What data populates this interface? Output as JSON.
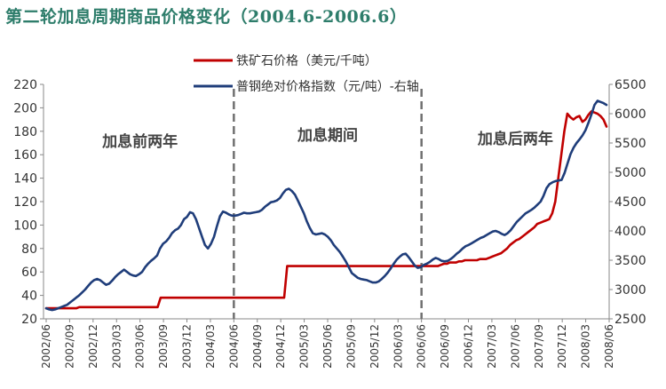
{
  "title": "第二轮加息周期商品价格变化（2004.6-2006.6）",
  "chart_data": {
    "type": "line",
    "title": "第二轮加息周期商品价格变化（2004.6-2006.6）",
    "left_axis": {
      "ylim": [
        20,
        220
      ],
      "ticks": [
        20,
        40,
        60,
        80,
        100,
        120,
        140,
        160,
        180,
        200,
        220
      ]
    },
    "right_axis": {
      "ylim": [
        2500,
        6500
      ],
      "ticks": [
        2500,
        3000,
        3500,
        4000,
        4500,
        5000,
        5500,
        6000,
        6500
      ]
    },
    "x_tick_labels": [
      "2002/06",
      "2002/09",
      "2002/12",
      "2003/03",
      "2003/06",
      "2003/09",
      "2003/12",
      "2004/03",
      "2004/06",
      "2004/09",
      "2004/12",
      "2005/03",
      "2005/06",
      "2005/09",
      "2005/12",
      "2006/03",
      "2006/06",
      "2006/09",
      "2006/12",
      "2007/03",
      "2007/06",
      "2007/09",
      "2007/12",
      "2008/03",
      "2008/06"
    ],
    "dividers": [
      "2004/06",
      "2006/06"
    ],
    "period_labels": [
      {
        "text": "加息前两年",
        "start": "2002/06",
        "end": "2004/06"
      },
      {
        "text": "加息期间",
        "start": "2004/06",
        "end": "2006/06"
      },
      {
        "text": "加息后两年",
        "start": "2006/06",
        "end": "2008/06"
      }
    ],
    "series": [
      {
        "name": "铁矿石价格（美元/千吨）",
        "axis": "left",
        "color": "#c00000",
        "values": [
          29,
          29,
          29,
          29,
          29,
          29,
          29,
          29,
          29,
          29,
          29,
          30,
          30,
          30,
          30,
          30,
          30,
          30,
          30,
          30,
          30,
          30,
          30,
          30,
          30,
          30,
          30,
          30,
          30,
          30,
          30,
          30,
          30,
          30,
          30,
          30,
          30,
          30,
          38,
          38,
          38,
          38,
          38,
          38,
          38,
          38,
          38,
          38,
          38,
          38,
          38,
          38,
          38,
          38,
          38,
          38,
          38,
          38,
          38,
          38,
          38,
          38,
          38,
          38,
          38,
          38,
          38,
          38,
          38,
          38,
          38,
          38,
          38,
          38,
          38,
          38,
          38,
          38,
          38,
          38,
          65,
          65,
          65,
          65,
          65,
          65,
          65,
          65,
          65,
          65,
          65,
          65,
          65,
          65,
          65,
          65,
          65,
          65,
          65,
          65,
          65,
          65,
          65,
          65,
          65,
          65,
          65,
          65,
          65,
          65,
          65,
          65,
          65,
          65,
          65,
          65,
          65,
          65,
          65,
          65,
          65,
          65,
          65,
          65,
          65,
          65,
          65,
          65,
          65,
          65,
          65,
          66,
          67,
          67,
          68,
          68,
          68,
          69,
          69,
          70,
          70,
          70,
          70,
          70,
          71,
          71,
          71,
          72,
          73,
          74,
          75,
          76,
          78,
          80,
          83,
          85,
          87,
          88,
          90,
          92,
          94,
          96,
          98,
          101,
          102,
          103,
          104,
          105,
          110,
          120,
          140,
          160,
          180,
          195,
          192,
          190,
          192,
          193,
          188,
          190,
          194,
          197,
          196,
          195,
          193,
          190,
          184
        ]
      },
      {
        "name": "普钢绝对价格指数（元/吨）-右轴",
        "axis": "right",
        "color": "#1f3d7a",
        "values": [
          2680,
          2660,
          2650,
          2660,
          2680,
          2700,
          2720,
          2740,
          2780,
          2820,
          2860,
          2900,
          2950,
          3000,
          3060,
          3120,
          3160,
          3180,
          3160,
          3120,
          3080,
          3100,
          3150,
          3210,
          3260,
          3300,
          3340,
          3300,
          3260,
          3240,
          3230,
          3260,
          3300,
          3380,
          3440,
          3490,
          3530,
          3580,
          3700,
          3780,
          3820,
          3880,
          3960,
          4010,
          4040,
          4100,
          4200,
          4240,
          4320,
          4300,
          4200,
          4050,
          3900,
          3760,
          3700,
          3780,
          3900,
          4080,
          4250,
          4330,
          4310,
          4280,
          4260,
          4260,
          4270,
          4290,
          4310,
          4300,
          4300,
          4310,
          4320,
          4330,
          4360,
          4410,
          4450,
          4490,
          4500,
          4520,
          4560,
          4640,
          4700,
          4720,
          4680,
          4620,
          4520,
          4410,
          4300,
          4160,
          4050,
          3960,
          3940,
          3950,
          3960,
          3940,
          3900,
          3840,
          3760,
          3700,
          3640,
          3560,
          3480,
          3380,
          3280,
          3240,
          3200,
          3180,
          3170,
          3160,
          3140,
          3120,
          3120,
          3140,
          3180,
          3230,
          3290,
          3360,
          3440,
          3510,
          3560,
          3600,
          3610,
          3550,
          3480,
          3410,
          3370,
          3380,
          3420,
          3440,
          3470,
          3510,
          3540,
          3520,
          3490,
          3480,
          3490,
          3520,
          3560,
          3610,
          3650,
          3700,
          3740,
          3760,
          3790,
          3820,
          3850,
          3880,
          3900,
          3930,
          3960,
          3990,
          4000,
          3980,
          3950,
          3930,
          3960,
          4010,
          4080,
          4150,
          4200,
          4250,
          4300,
          4330,
          4360,
          4400,
          4450,
          4500,
          4600,
          4730,
          4800,
          4830,
          4850,
          4860,
          4870,
          4990,
          5150,
          5310,
          5420,
          5500,
          5560,
          5630,
          5720,
          5850,
          5990,
          6150,
          6220,
          6200,
          6180,
          6150
        ]
      }
    ]
  }
}
